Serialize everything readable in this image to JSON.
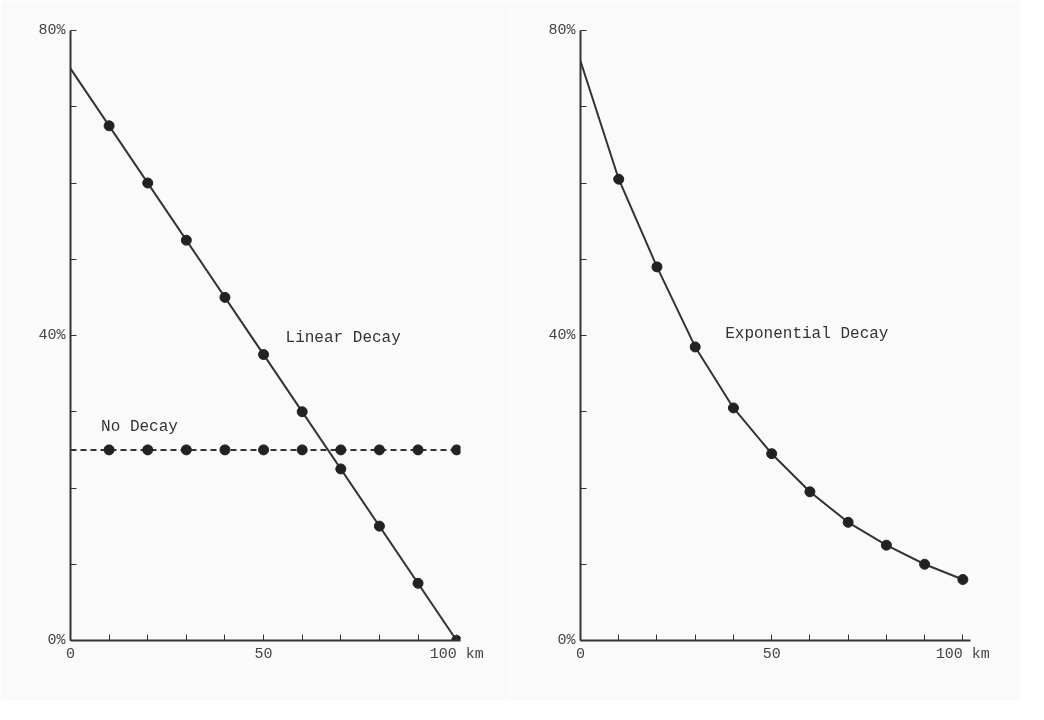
{
  "chart_data": [
    {
      "type": "line",
      "xlim": [
        0,
        101
      ],
      "ylim": [
        0,
        80
      ],
      "xticks": [
        0,
        {
          "value": 10,
          "label": null
        },
        {
          "value": 20,
          "label": null
        },
        {
          "value": 30,
          "label": null
        },
        {
          "value": 40,
          "label": null
        },
        50,
        {
          "value": 60,
          "label": null
        },
        {
          "value": 70,
          "label": null
        },
        {
          "value": 80,
          "label": null
        },
        {
          "value": 90,
          "label": null
        },
        {
          "value": 100,
          "label": "100 km"
        }
      ],
      "yticks": [
        {
          "value": 0,
          "label": "0%"
        },
        {
          "value": 10,
          "label": null
        },
        {
          "value": 20,
          "label": null
        },
        {
          "value": 30,
          "label": null
        },
        {
          "value": 40,
          "label": "40%"
        },
        {
          "value": 50,
          "label": null
        },
        {
          "value": 60,
          "label": null
        },
        {
          "value": 70,
          "label": null
        },
        {
          "value": 80,
          "label": "80%"
        }
      ],
      "grid": false,
      "series": [
        {
          "name": "Linear Decay",
          "color": "#333333",
          "line_style": "solid",
          "marker": "none",
          "x": [
            0,
            100
          ],
          "values": [
            75,
            0
          ]
        },
        {
          "type": "scatter",
          "color": "#222222",
          "marker": "circle",
          "x": [
            10,
            20,
            30,
            40,
            50,
            60,
            70,
            80,
            90,
            100
          ],
          "values": [
            67.5,
            60,
            52.5,
            45,
            37.5,
            30,
            22.5,
            15,
            7.5,
            0
          ]
        },
        {
          "name": "No Decay",
          "color": "#333333",
          "line_style": "dashed",
          "marker": "none",
          "x": [
            0,
            100
          ],
          "values": [
            25,
            25
          ]
        },
        {
          "type": "scatter",
          "color": "#222222",
          "marker": "circle",
          "x": [
            10,
            20,
            30,
            40,
            50,
            60,
            70,
            80,
            90,
            100
          ],
          "values": [
            25,
            25,
            25,
            25,
            25,
            25,
            25,
            25,
            25,
            25
          ]
        }
      ]
    },
    {
      "type": "line",
      "xlim": [
        0,
        102
      ],
      "ylim": [
        0,
        80
      ],
      "xticks": [
        0,
        {
          "value": 10,
          "label": null
        },
        {
          "value": 20,
          "label": null
        },
        {
          "value": 30,
          "label": null
        },
        {
          "value": 40,
          "label": null
        },
        50,
        {
          "value": 60,
          "label": null
        },
        {
          "value": 70,
          "label": null
        },
        {
          "value": 80,
          "label": null
        },
        {
          "value": 90,
          "label": null
        },
        {
          "value": 100,
          "label": "100 km"
        }
      ],
      "yticks": [
        {
          "value": 0,
          "label": "0%"
        },
        {
          "value": 10,
          "label": null
        },
        {
          "value": 20,
          "label": null
        },
        {
          "value": 30,
          "label": null
        },
        {
          "value": 40,
          "label": "40%"
        },
        {
          "value": 50,
          "label": null
        },
        {
          "value": 60,
          "label": null
        },
        {
          "value": 70,
          "label": null
        },
        {
          "value": 80,
          "label": "80%"
        }
      ],
      "grid": false,
      "series": [
        {
          "name": "Exponential Decay",
          "color": "#333333",
          "line_style": "solid",
          "marker": "none",
          "x": [
            0,
            10,
            20,
            30,
            40,
            50,
            60,
            70,
            80,
            90,
            100
          ],
          "values": [
            76,
            60.5,
            49,
            38.5,
            30.5,
            24.5,
            19.5,
            15.5,
            12.5,
            10,
            8
          ]
        },
        {
          "type": "scatter",
          "color": "#222222",
          "marker": "circle",
          "x": [
            10,
            20,
            30,
            40,
            50,
            60,
            70,
            80,
            90,
            100
          ],
          "values": [
            60.5,
            49,
            38.5,
            30.5,
            24.5,
            19.5,
            15.5,
            12.5,
            10,
            8
          ]
        }
      ]
    }
  ]
}
